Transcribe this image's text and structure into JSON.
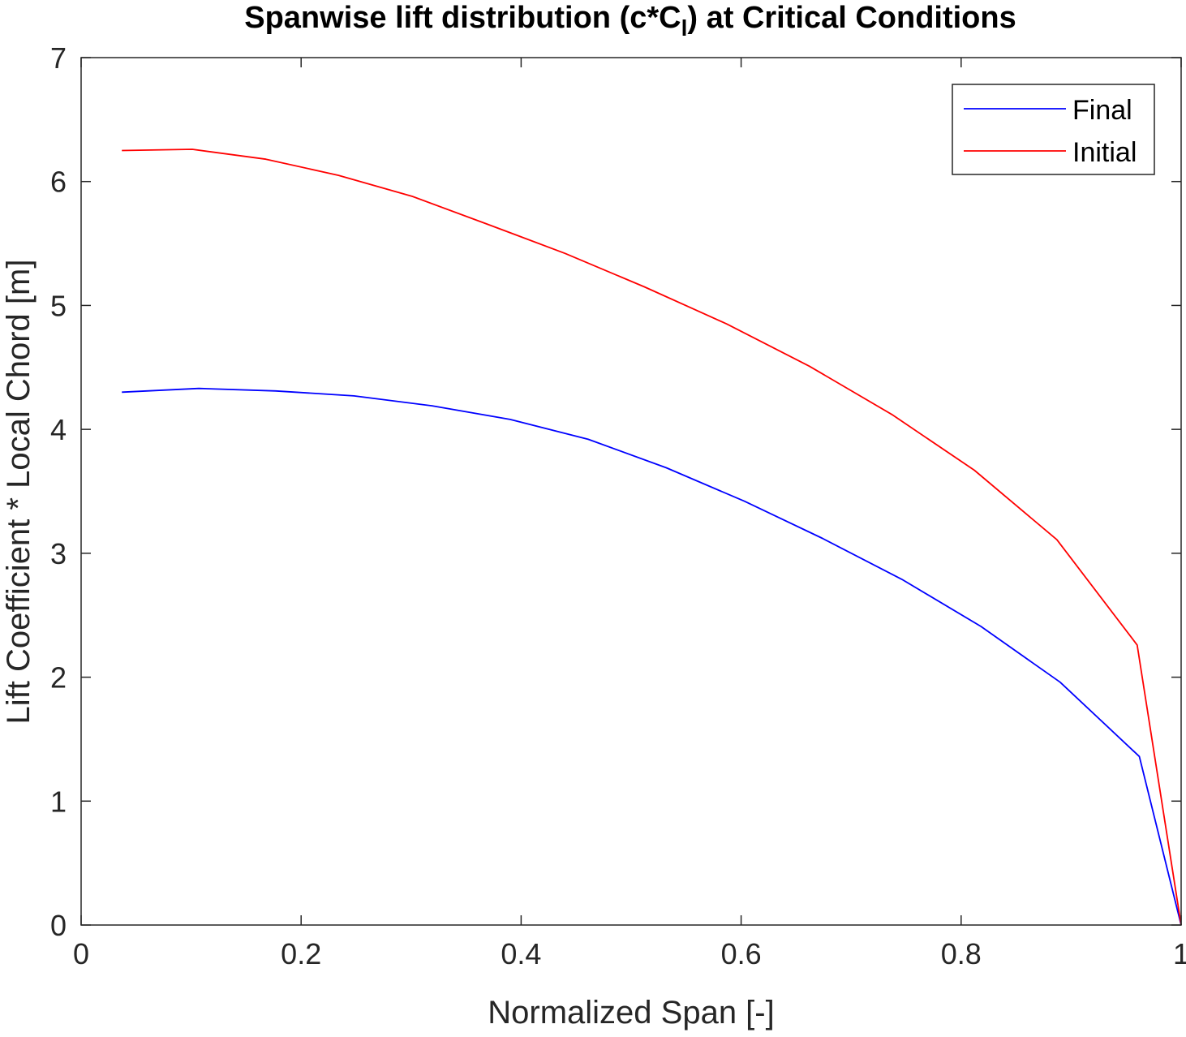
{
  "chart_data": {
    "type": "line",
    "title": {
      "main": "Spanwise lift distribution (c*C",
      "subscript": "l",
      "tail": ") at Critical Conditions"
    },
    "xlabel": "Normalized Span [-]",
    "ylabel": "Lift Coefficient * Local Chord [m]",
    "xlim": [
      0,
      1
    ],
    "ylim": [
      0,
      7
    ],
    "xticks": [
      0,
      0.2,
      0.4,
      0.6,
      0.8,
      1
    ],
    "xtick_labels": [
      "0",
      "0.2",
      "0.4",
      "0.6",
      "0.8",
      "1"
    ],
    "yticks": [
      0,
      1,
      2,
      3,
      4,
      5,
      6,
      7
    ],
    "ytick_labels": [
      "0",
      "1",
      "2",
      "3",
      "4",
      "5",
      "6",
      "7"
    ],
    "grid": false,
    "box": true,
    "legend_position": "top-right",
    "series": [
      {
        "name": "Final",
        "color": "#0000ff",
        "x": [
          0.037,
          0.107,
          0.177,
          0.248,
          0.319,
          0.39,
          0.461,
          0.532,
          0.603,
          0.674,
          0.746,
          0.818,
          0.89,
          0.962,
          1.0
        ],
        "y": [
          4.3,
          4.33,
          4.31,
          4.27,
          4.19,
          4.08,
          3.92,
          3.69,
          3.42,
          3.12,
          2.79,
          2.41,
          1.96,
          1.36,
          0.0
        ]
      },
      {
        "name": "Initial",
        "color": "#ff0000",
        "x": [
          0.037,
          0.101,
          0.168,
          0.234,
          0.301,
          0.368,
          0.44,
          0.512,
          0.587,
          0.662,
          0.737,
          0.812,
          0.887,
          0.96,
          1.0
        ],
        "y": [
          6.25,
          6.26,
          6.18,
          6.05,
          5.88,
          5.66,
          5.42,
          5.15,
          4.85,
          4.51,
          4.12,
          3.67,
          3.11,
          2.26,
          0.0
        ]
      }
    ]
  }
}
